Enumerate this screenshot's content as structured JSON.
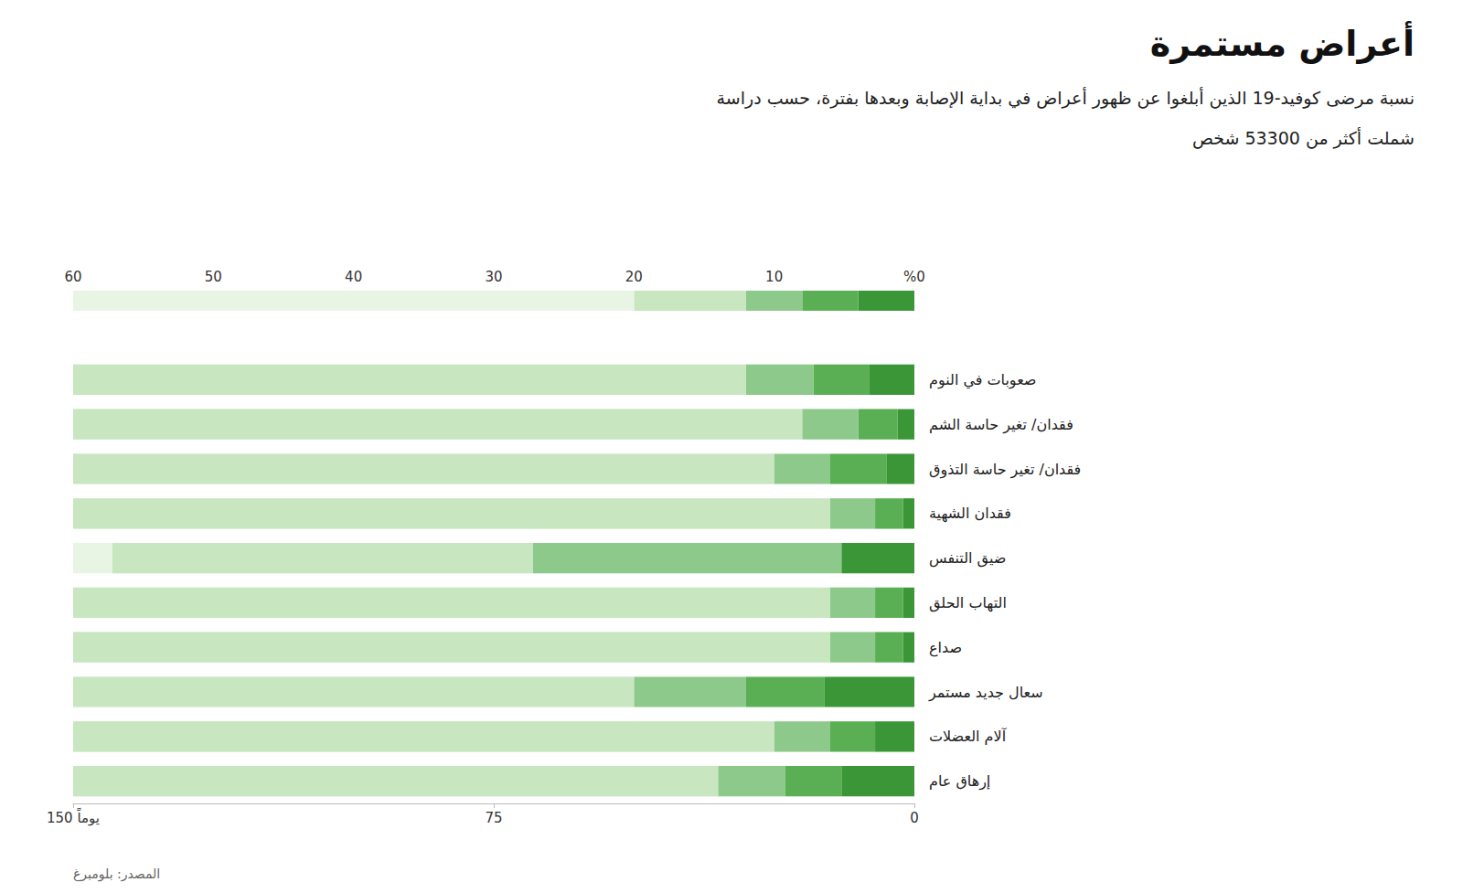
{
  "chart_data": {
    "type": "bar",
    "orientation": "horizontal",
    "stacked": true,
    "title": "أعراض مستمرة",
    "subtitle": [
      "نسبة مرضى كوفيد-19 الذين أبلغوا عن ظهور أعراض في بداية الإصابة وبعدها بفترة، حسب دراسة",
      "شملت أكثر من 53300 شخص"
    ],
    "source": "المصدر: بلومبرغ",
    "categories": [
      "إرهاق عام",
      "آلام العضلات",
      "سعال جديد مستمر",
      "صداع",
      "التهاب الحلق",
      "ضيق التنفس",
      "فقدان الشهية",
      "فقدان/ تغير حاسة التذوق",
      "فقدان/ تغير حاسة الشم",
      "صعوبات في النوم"
    ],
    "series": [
      {
        "color": "#3a9636",
        "values": [
          13,
          7,
          16,
          2,
          2,
          13,
          2,
          5,
          3,
          8
        ]
      },
      {
        "color": "#5aaf55",
        "values": [
          10,
          8,
          14,
          5,
          5,
          0,
          5,
          10,
          7,
          10
        ]
      },
      {
        "color": "#8dc98a",
        "values": [
          12,
          10,
          20,
          8,
          8,
          55,
          8,
          10,
          10,
          12
        ]
      },
      {
        "color": "#c8e6c0",
        "values": [
          115,
          125,
          100,
          135,
          135,
          75,
          135,
          125,
          130,
          120
        ]
      }
    ],
    "xlim": [
      0,
      150
    ],
    "xticks": [
      0,
      75,
      {
        "value": 150,
        "label": "150 يوماً"
      }
    ],
    "grid": false,
    "colorbar": {
      "range": [
        0,
        60
      ],
      "ticks": [
        60,
        50,
        40,
        30,
        20,
        10,
        {
          "value": 0,
          "label": "%0"
        }
      ],
      "steps": [
        4,
        4,
        4,
        8,
        40
      ],
      "colors": [
        "#3a9636",
        "#5aaf55",
        "#8dc98a",
        "#c8e6c0",
        "#e8f5e4"
      ]
    }
  }
}
